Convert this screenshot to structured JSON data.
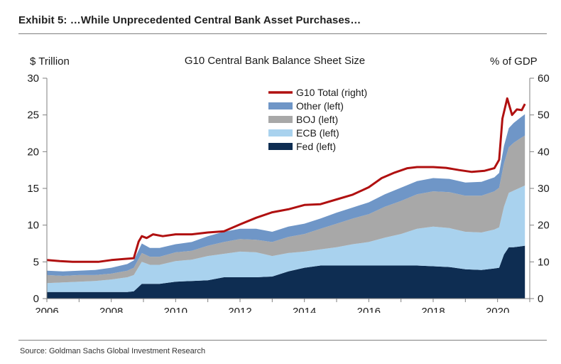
{
  "exhibit_title": "Exhibit 5: …While Unprecedented Central Bank Asset Purchases…",
  "source": "Source: Goldman Sachs Global Investment Research",
  "chart_data": {
    "type": "area",
    "title": "G10 Central Bank Balance Sheet Size",
    "ylabel_left": "$ Trillion",
    "ylabel_right": "% of GDP",
    "xlim": [
      2006,
      2021
    ],
    "ylim_left": [
      0,
      30
    ],
    "ylim_right": [
      0,
      60
    ],
    "x_ticks": [
      "2006",
      "2008",
      "2010",
      "2012",
      "2014",
      "2016",
      "2018",
      "2020"
    ],
    "y_ticks_left": [
      "0",
      "5",
      "10",
      "15",
      "20",
      "25",
      "30"
    ],
    "y_ticks_right": [
      "0",
      "10",
      "20",
      "30",
      "40",
      "50",
      "60"
    ],
    "grid": false,
    "legend_position": "top-center",
    "x": [
      2006.0,
      2006.5,
      2007.0,
      2007.5,
      2008.0,
      2008.5,
      2008.7,
      2008.95,
      2009.2,
      2009.5,
      2010.0,
      2010.5,
      2011.0,
      2011.5,
      2012.0,
      2012.5,
      2013.0,
      2013.5,
      2014.0,
      2014.5,
      2015.0,
      2015.5,
      2016.0,
      2016.5,
      2017.0,
      2017.5,
      2018.0,
      2018.5,
      2019.0,
      2019.5,
      2019.9,
      2020.05,
      2020.2,
      2020.35,
      2020.5,
      2020.7,
      2020.85
    ],
    "series": [
      {
        "name": "Fed (left)",
        "color": "#0e2d52",
        "axis": "left",
        "values": [
          0.9,
          0.9,
          0.9,
          0.9,
          0.9,
          0.9,
          1.0,
          2.0,
          2.0,
          2.0,
          2.3,
          2.4,
          2.5,
          2.9,
          2.9,
          2.9,
          3.0,
          3.7,
          4.2,
          4.5,
          4.5,
          4.5,
          4.5,
          4.5,
          4.5,
          4.5,
          4.4,
          4.3,
          4.0,
          3.9,
          4.1,
          4.2,
          6.0,
          7.0,
          7.0,
          7.1,
          7.2
        ]
      },
      {
        "name": "ECB (left)",
        "color": "#a9d2ee",
        "axis": "left",
        "values": [
          1.2,
          1.3,
          1.4,
          1.5,
          1.7,
          2.0,
          2.2,
          3.0,
          2.6,
          2.6,
          2.8,
          2.9,
          3.3,
          3.2,
          3.5,
          3.4,
          2.8,
          2.5,
          2.2,
          2.2,
          2.5,
          2.9,
          3.2,
          3.8,
          4.3,
          5.0,
          5.4,
          5.3,
          5.1,
          5.1,
          5.3,
          5.5,
          6.5,
          7.4,
          7.7,
          8.0,
          8.2
        ]
      },
      {
        "name": "BOJ (left)",
        "color": "#a8a8a8",
        "axis": "left",
        "values": [
          1.1,
          0.9,
          0.9,
          0.8,
          0.8,
          0.9,
          1.0,
          1.2,
          1.1,
          1.1,
          1.2,
          1.2,
          1.4,
          1.6,
          1.7,
          1.7,
          1.9,
          2.2,
          2.4,
          2.8,
          3.2,
          3.5,
          3.8,
          4.2,
          4.5,
          4.7,
          4.8,
          4.9,
          4.9,
          5.0,
          5.2,
          5.4,
          5.9,
          6.2,
          6.5,
          6.7,
          6.8
        ]
      },
      {
        "name": "Other (left)",
        "color": "#6f96c7",
        "axis": "left",
        "values": [
          0.6,
          0.6,
          0.6,
          0.7,
          0.8,
          0.9,
          1.0,
          1.3,
          1.2,
          1.2,
          1.1,
          1.2,
          1.3,
          1.4,
          1.4,
          1.5,
          1.4,
          1.4,
          1.4,
          1.4,
          1.5,
          1.5,
          1.6,
          1.7,
          1.8,
          1.8,
          1.8,
          1.8,
          1.8,
          1.9,
          1.9,
          2.0,
          2.4,
          2.6,
          2.7,
          2.8,
          2.9
        ]
      },
      {
        "name": "G10 Total (right)",
        "color": "#b01010",
        "axis": "right",
        "type": "line",
        "x": [
          2006.0,
          2006.4,
          2006.8,
          2007.2,
          2007.6,
          2008.0,
          2008.4,
          2008.7,
          2008.85,
          2008.95,
          2009.1,
          2009.3,
          2009.6,
          2010.0,
          2010.5,
          2011.0,
          2011.5,
          2012.0,
          2012.5,
          2013.0,
          2013.5,
          2014.0,
          2014.5,
          2015.0,
          2015.5,
          2016.0,
          2016.4,
          2016.8,
          2017.2,
          2017.5,
          2018.0,
          2018.4,
          2018.8,
          2019.2,
          2019.6,
          2019.9,
          2020.05,
          2020.15,
          2020.3,
          2020.45,
          2020.6,
          2020.75,
          2020.85
        ],
        "values": [
          10.5,
          10.2,
          10.0,
          10.0,
          10.0,
          10.5,
          10.8,
          11.0,
          15.5,
          17.0,
          16.5,
          17.5,
          17.0,
          17.5,
          17.5,
          18.0,
          18.3,
          20.2,
          22.0,
          23.5,
          24.3,
          25.5,
          25.7,
          27.0,
          28.3,
          30.3,
          32.8,
          34.3,
          35.5,
          35.8,
          35.8,
          35.6,
          35.0,
          34.5,
          34.8,
          35.5,
          37.8,
          49.0,
          54.5,
          50.0,
          51.5,
          51.3,
          53.0
        ]
      }
    ]
  }
}
